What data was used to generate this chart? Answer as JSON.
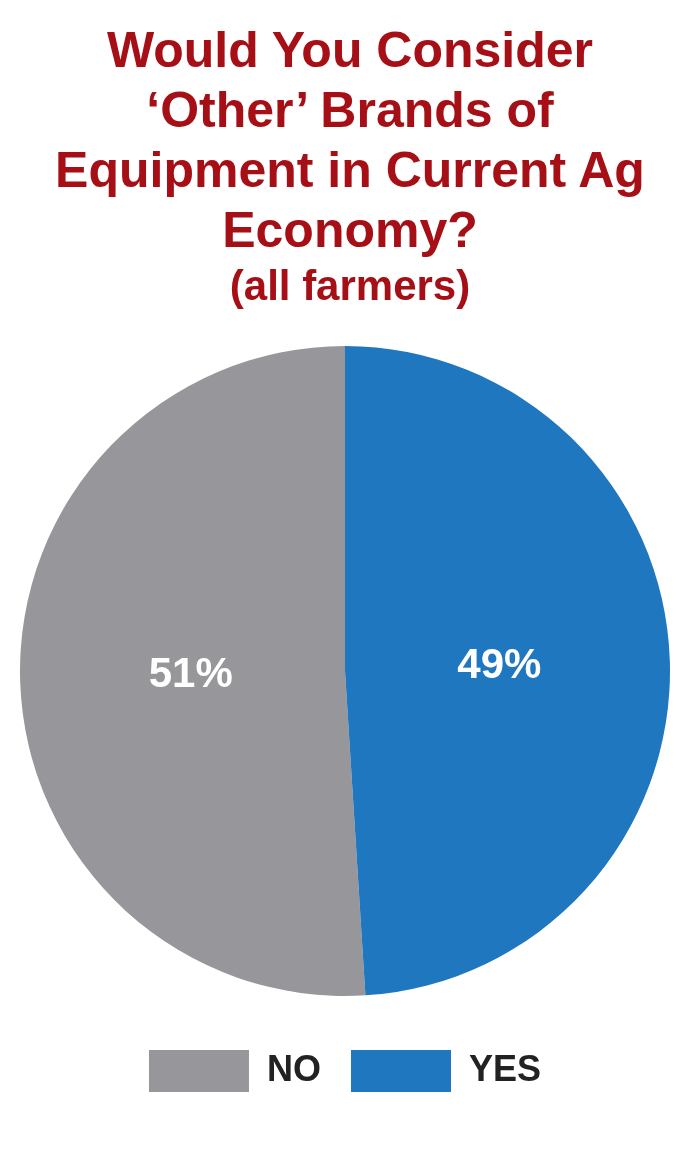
{
  "chart_data": {
    "type": "pie",
    "title": "Would You Consider ‘Other’ Brands of Equipment in Current Ag Economy?",
    "subtitle": "(all farmers)",
    "categories": [
      "NO",
      "YES"
    ],
    "values": [
      51,
      49
    ],
    "colors": [
      "#97979b",
      "#1f77c0"
    ],
    "value_labels": [
      "51%",
      "49%"
    ],
    "legend": "bottom"
  }
}
